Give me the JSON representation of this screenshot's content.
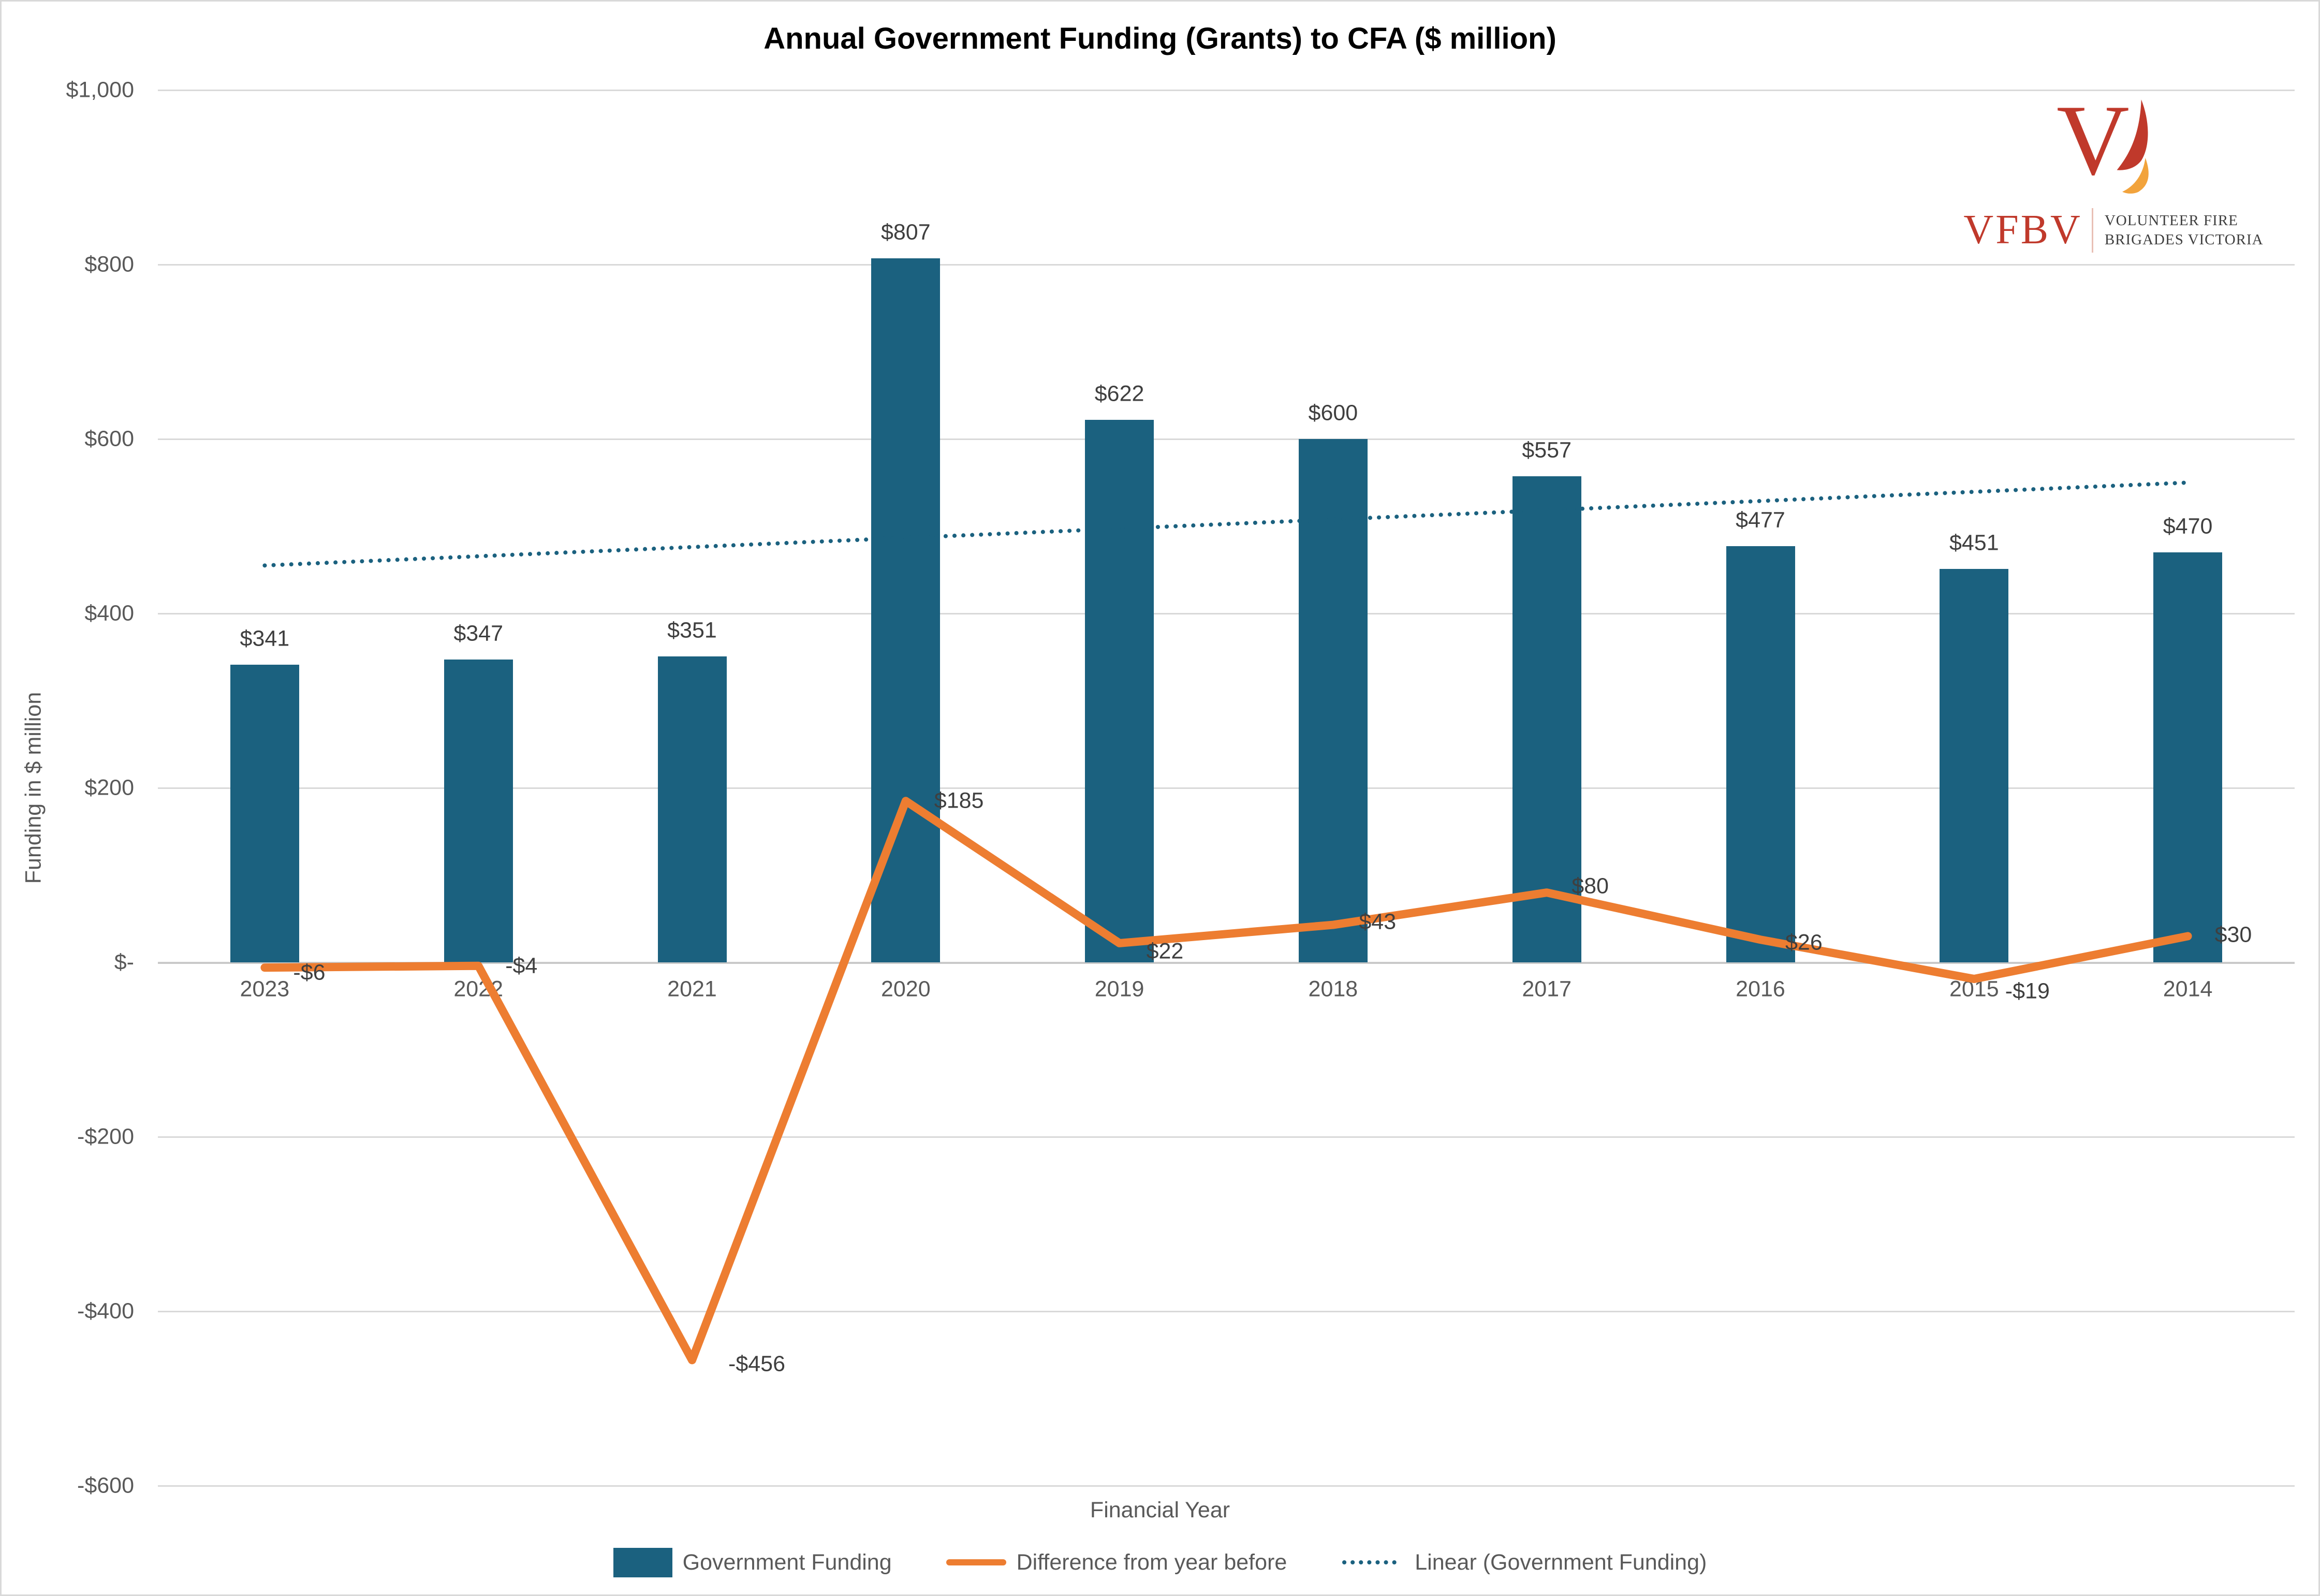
{
  "title": "Annual Government Funding (Grants) to CFA ($ million)",
  "branding": {
    "acronym": "VFBV",
    "name_line1": "VOLUNTEER FIRE",
    "name_line2": "BRIGADES VICTORIA",
    "logo_red": "#c0392b",
    "logo_orange": "#f2a33c"
  },
  "chart_data": {
    "type": "bar",
    "categories": [
      "2023",
      "2022",
      "2021",
      "2020",
      "2019",
      "2018",
      "2017",
      "2016",
      "2015",
      "2014"
    ],
    "series": [
      {
        "name": "Government Funding",
        "type": "bar",
        "color": "#1b617f",
        "values": [
          341,
          347,
          351,
          807,
          622,
          600,
          557,
          477,
          451,
          470
        ],
        "labels": [
          "$341",
          "$347",
          "$351",
          "$807",
          "$622",
          "$600",
          "$557",
          "$477",
          "$451",
          "$470"
        ]
      },
      {
        "name": "Difference from year before",
        "type": "line",
        "color": "#ed7d31",
        "values": [
          -6,
          -4,
          -456,
          185,
          22,
          43,
          80,
          26,
          -19,
          30
        ],
        "labels": [
          "-$6",
          "-$4",
          "-$456",
          "$185",
          "$22",
          "$43",
          "$80",
          "$26",
          "-$19",
          "$30"
        ]
      },
      {
        "name": "Linear (Government Funding)",
        "type": "trendline",
        "style": "dotted",
        "color": "#1b617f",
        "start_value": 455,
        "end_value": 550
      }
    ],
    "xlabel": "Financial Year",
    "ylabel": "Funding in $ million",
    "ylim": [
      -600,
      1000
    ],
    "ytick_step": 200,
    "ytick_labels": [
      "$1,000",
      "$800",
      "$600",
      "$400",
      "$200",
      "$-",
      "-$200",
      "-$400",
      "-$600"
    ],
    "grid": true,
    "gridline_color": "#d9d9d9",
    "legend_position": "bottom",
    "text_color": "#595959",
    "data_label_color": "#3f3f3f"
  }
}
